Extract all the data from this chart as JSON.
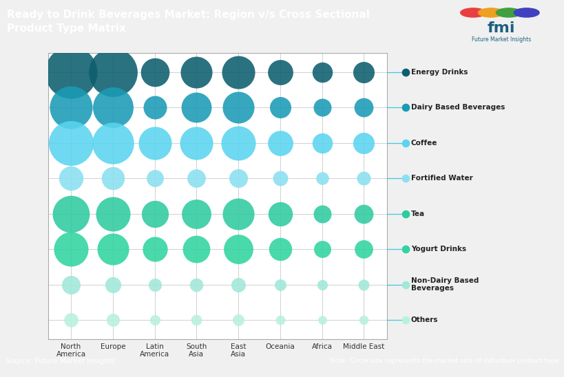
{
  "title": "Ready to Drink Beverages Market: Region v/s Cross Sectional\nProduct Type Matrix",
  "title_bg": "#1e6f8c",
  "title_color": "#ffffff",
  "source_text": "Source: Future Market Insights",
  "note_text": "Note: Circle size represents the market size of individual product type",
  "footer_bg": "#3a9abf",
  "footer_color": "#ffffff",
  "regions": [
    "North\nAmerica",
    "Europe",
    "Latin\nAmerica",
    "South\nAsia",
    "East\nAsia",
    "Oceania",
    "Africa",
    "Middle East"
  ],
  "products": [
    "Energy Drinks",
    "Dairy Based Beverages",
    "Coffee",
    "Fortified Water",
    "Tea",
    "Yogurt Drinks",
    "Non-Dairy Based\nBeverages",
    "Others"
  ],
  "colors": [
    "#0d5e6e",
    "#1a9bb5",
    "#5ad4f0",
    "#8ae0f0",
    "#2ecba0",
    "#30d4a0",
    "#a0e8d8",
    "#b8f0e0"
  ],
  "bubble_sizes": [
    [
      3000,
      2600,
      900,
      1100,
      1200,
      700,
      450,
      500
    ],
    [
      2000,
      1800,
      600,
      1000,
      1100,
      500,
      350,
      400
    ],
    [
      2200,
      1900,
      1200,
      1200,
      1300,
      700,
      450,
      500
    ],
    [
      650,
      580,
      320,
      370,
      380,
      250,
      180,
      210
    ],
    [
      1500,
      1300,
      800,
      950,
      1100,
      650,
      350,
      400
    ],
    [
      1300,
      1100,
      680,
      820,
      950,
      580,
      320,
      370
    ],
    [
      380,
      280,
      190,
      200,
      230,
      150,
      120,
      135
    ],
    [
      220,
      190,
      120,
      130,
      150,
      100,
      85,
      95
    ]
  ],
  "legend_dot_size": 55,
  "legend_line_color": "#40c8e0",
  "grid_color": "#d0d0d0",
  "plot_bg": "#ffffff",
  "outer_bg": "#f0f0f0"
}
